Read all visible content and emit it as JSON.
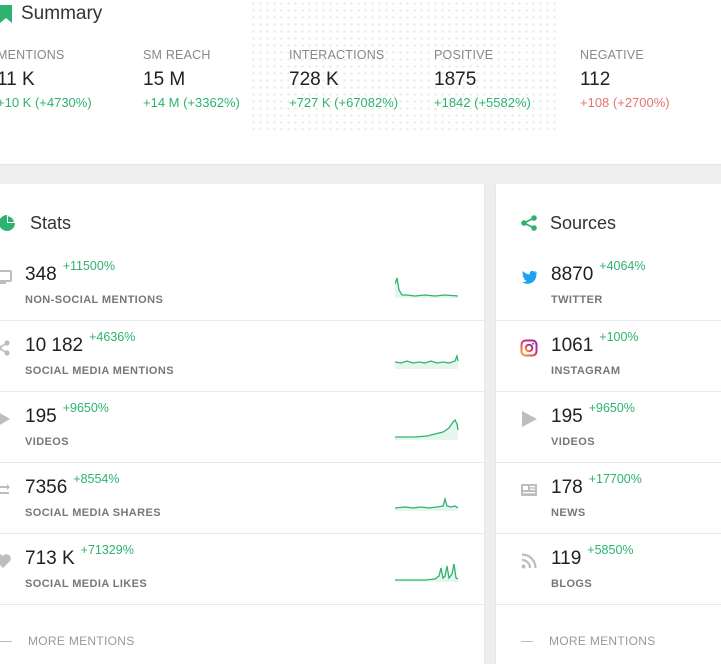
{
  "summary": {
    "title": "Summary",
    "metrics": [
      {
        "label": "MENTIONS",
        "value": "11 K",
        "delta": "+10 K  (+4730%)",
        "trend": "pos"
      },
      {
        "label": "SM REACH",
        "value": "15 M",
        "delta": "+14 M  (+3362%)",
        "trend": "pos"
      },
      {
        "label": "INTERACTIONS",
        "value": "728 K",
        "delta": "+727 K  (+67082%)",
        "trend": "pos"
      },
      {
        "label": "POSITIVE",
        "value": "1875",
        "delta": "+1842  (+5582%)",
        "trend": "pos"
      },
      {
        "label": "NEGATIVE",
        "value": "112",
        "delta": "+108  (+2700%)",
        "trend": "neg"
      }
    ]
  },
  "stats": {
    "title": "Stats",
    "rows": [
      {
        "value": "348",
        "change": "+11500%",
        "label": "NON-SOCIAL MENTIONS",
        "icon": "monitor-icon"
      },
      {
        "value": "10 182",
        "change": "+4636%",
        "label": "SOCIAL MEDIA MENTIONS",
        "icon": "share-icon"
      },
      {
        "value": "195",
        "change": "+9650%",
        "label": "VIDEOS",
        "icon": "play-icon"
      },
      {
        "value": "7356",
        "change": "+8554%",
        "label": "SOCIAL MEDIA SHARES",
        "icon": "repost-icon"
      },
      {
        "value": "713 K",
        "change": "+71329%",
        "label": "SOCIAL MEDIA LIKES",
        "icon": "heart-icon"
      }
    ],
    "more_label": "MORE MENTIONS"
  },
  "sources": {
    "title": "Sources",
    "rows": [
      {
        "value": "8870",
        "change": "+4064%",
        "label": "TWITTER",
        "icon": "twitter-icon"
      },
      {
        "value": "1061",
        "change": "+100%",
        "label": "INSTAGRAM",
        "icon": "instagram-icon"
      },
      {
        "value": "195",
        "change": "+9650%",
        "label": "VIDEOS",
        "icon": "play-icon"
      },
      {
        "value": "178",
        "change": "+17700%",
        "label": "NEWS",
        "icon": "news-icon"
      },
      {
        "value": "119",
        "change": "+5850%",
        "label": "BLOGS",
        "icon": "rss-icon"
      }
    ],
    "more_label": "MORE MENTIONS"
  },
  "colors": {
    "accent": "#2db36f",
    "negative": "#e57373",
    "twitter": "#1da1f2",
    "instagram": "#e1306c"
  }
}
